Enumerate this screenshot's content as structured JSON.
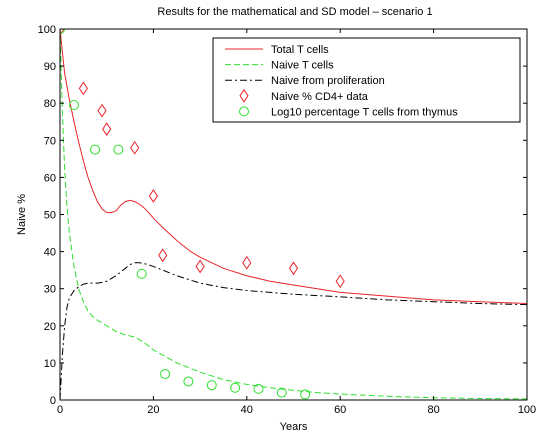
{
  "chart_data": {
    "type": "line",
    "title": "Results for the mathematical and SD model – scenario 1",
    "xlabel": "Years",
    "ylabel": "Naive %",
    "xlim": [
      0,
      100
    ],
    "ylim": [
      0,
      100
    ],
    "xticks": [
      0,
      20,
      40,
      60,
      80,
      100
    ],
    "yticks": [
      0,
      10,
      20,
      30,
      40,
      50,
      60,
      70,
      80,
      90,
      100
    ],
    "grid": false,
    "legend_position": "top-right",
    "series": [
      {
        "name": "Total T cells",
        "kind": "line",
        "color": "#e8262b",
        "dash": "solid",
        "x": [
          0,
          1,
          2,
          3,
          4,
          5,
          6,
          7,
          8,
          9,
          10,
          11,
          12,
          13,
          14,
          15,
          16,
          17,
          18,
          19,
          20,
          22,
          25,
          28,
          30,
          35,
          40,
          45,
          50,
          60,
          70,
          80,
          90,
          100
        ],
        "y": [
          100,
          88,
          81,
          75,
          69.5,
          64.5,
          60,
          56.5,
          53.5,
          51.5,
          50.5,
          50.5,
          51,
          52.5,
          53.5,
          53.8,
          53.5,
          52.8,
          51.8,
          50.5,
          49,
          46.5,
          43,
          40,
          38.5,
          35.5,
          33.5,
          32,
          31,
          29,
          28,
          27,
          26.5,
          26
        ]
      },
      {
        "name": "Naive T cells",
        "kind": "line",
        "color": "#2ee02e",
        "dash": "dashed",
        "x": [
          0,
          0.5,
          1,
          1.5,
          2,
          3,
          4,
          5,
          6,
          7,
          8,
          9,
          10,
          12,
          14,
          16,
          18,
          20,
          25,
          30,
          35,
          40,
          45,
          50,
          55,
          60,
          70,
          80,
          90,
          100
        ],
        "y": [
          100,
          78,
          62,
          52,
          45,
          36,
          30,
          26.5,
          24,
          22.5,
          21.5,
          20.8,
          20,
          18.5,
          17.5,
          17,
          15.5,
          13.5,
          10,
          7.5,
          5.5,
          4.2,
          3.3,
          2.6,
          2,
          1.6,
          1,
          0.6,
          0.4,
          0.3
        ]
      },
      {
        "name": "Naive from proliferation",
        "kind": "line",
        "color": "#000000",
        "dash": "dashdot",
        "x": [
          0,
          0.5,
          1,
          1.5,
          2,
          3,
          4,
          5,
          6,
          7,
          8,
          9,
          10,
          12,
          14,
          15,
          16,
          17,
          18,
          20,
          25,
          30,
          35,
          40,
          45,
          50,
          60,
          70,
          80,
          90,
          100
        ],
        "y": [
          0,
          12,
          20,
          25,
          27.5,
          29.5,
          30.5,
          31.2,
          31.5,
          31.5,
          31.5,
          31.7,
          32,
          33.5,
          35.5,
          36.5,
          37,
          37,
          36.8,
          36,
          33.5,
          31.5,
          30.3,
          29.5,
          29,
          28.5,
          27.8,
          27,
          26.5,
          26,
          25.7
        ]
      },
      {
        "name": "Naive % CD4+ data",
        "kind": "scatter",
        "marker": "diamond",
        "color": "#e8262b",
        "x": [
          0,
          5,
          9,
          10,
          16,
          20,
          22,
          30,
          40,
          50,
          60
        ],
        "y": [
          100,
          84,
          78,
          73,
          68,
          55,
          39,
          36,
          37,
          35.5,
          32
        ]
      },
      {
        "name": "Log10 percentage T cells from thymus",
        "kind": "scatter",
        "marker": "circle",
        "color": "#2ee02e",
        "x": [
          0,
          3,
          7.5,
          12.5,
          17.5,
          22.5,
          27.5,
          32.5,
          37.5,
          42.5,
          47.5,
          52.5
        ],
        "y": [
          100,
          79.5,
          67.5,
          67.5,
          34,
          7,
          5,
          4,
          3.3,
          3,
          2,
          1.5
        ]
      }
    ]
  }
}
